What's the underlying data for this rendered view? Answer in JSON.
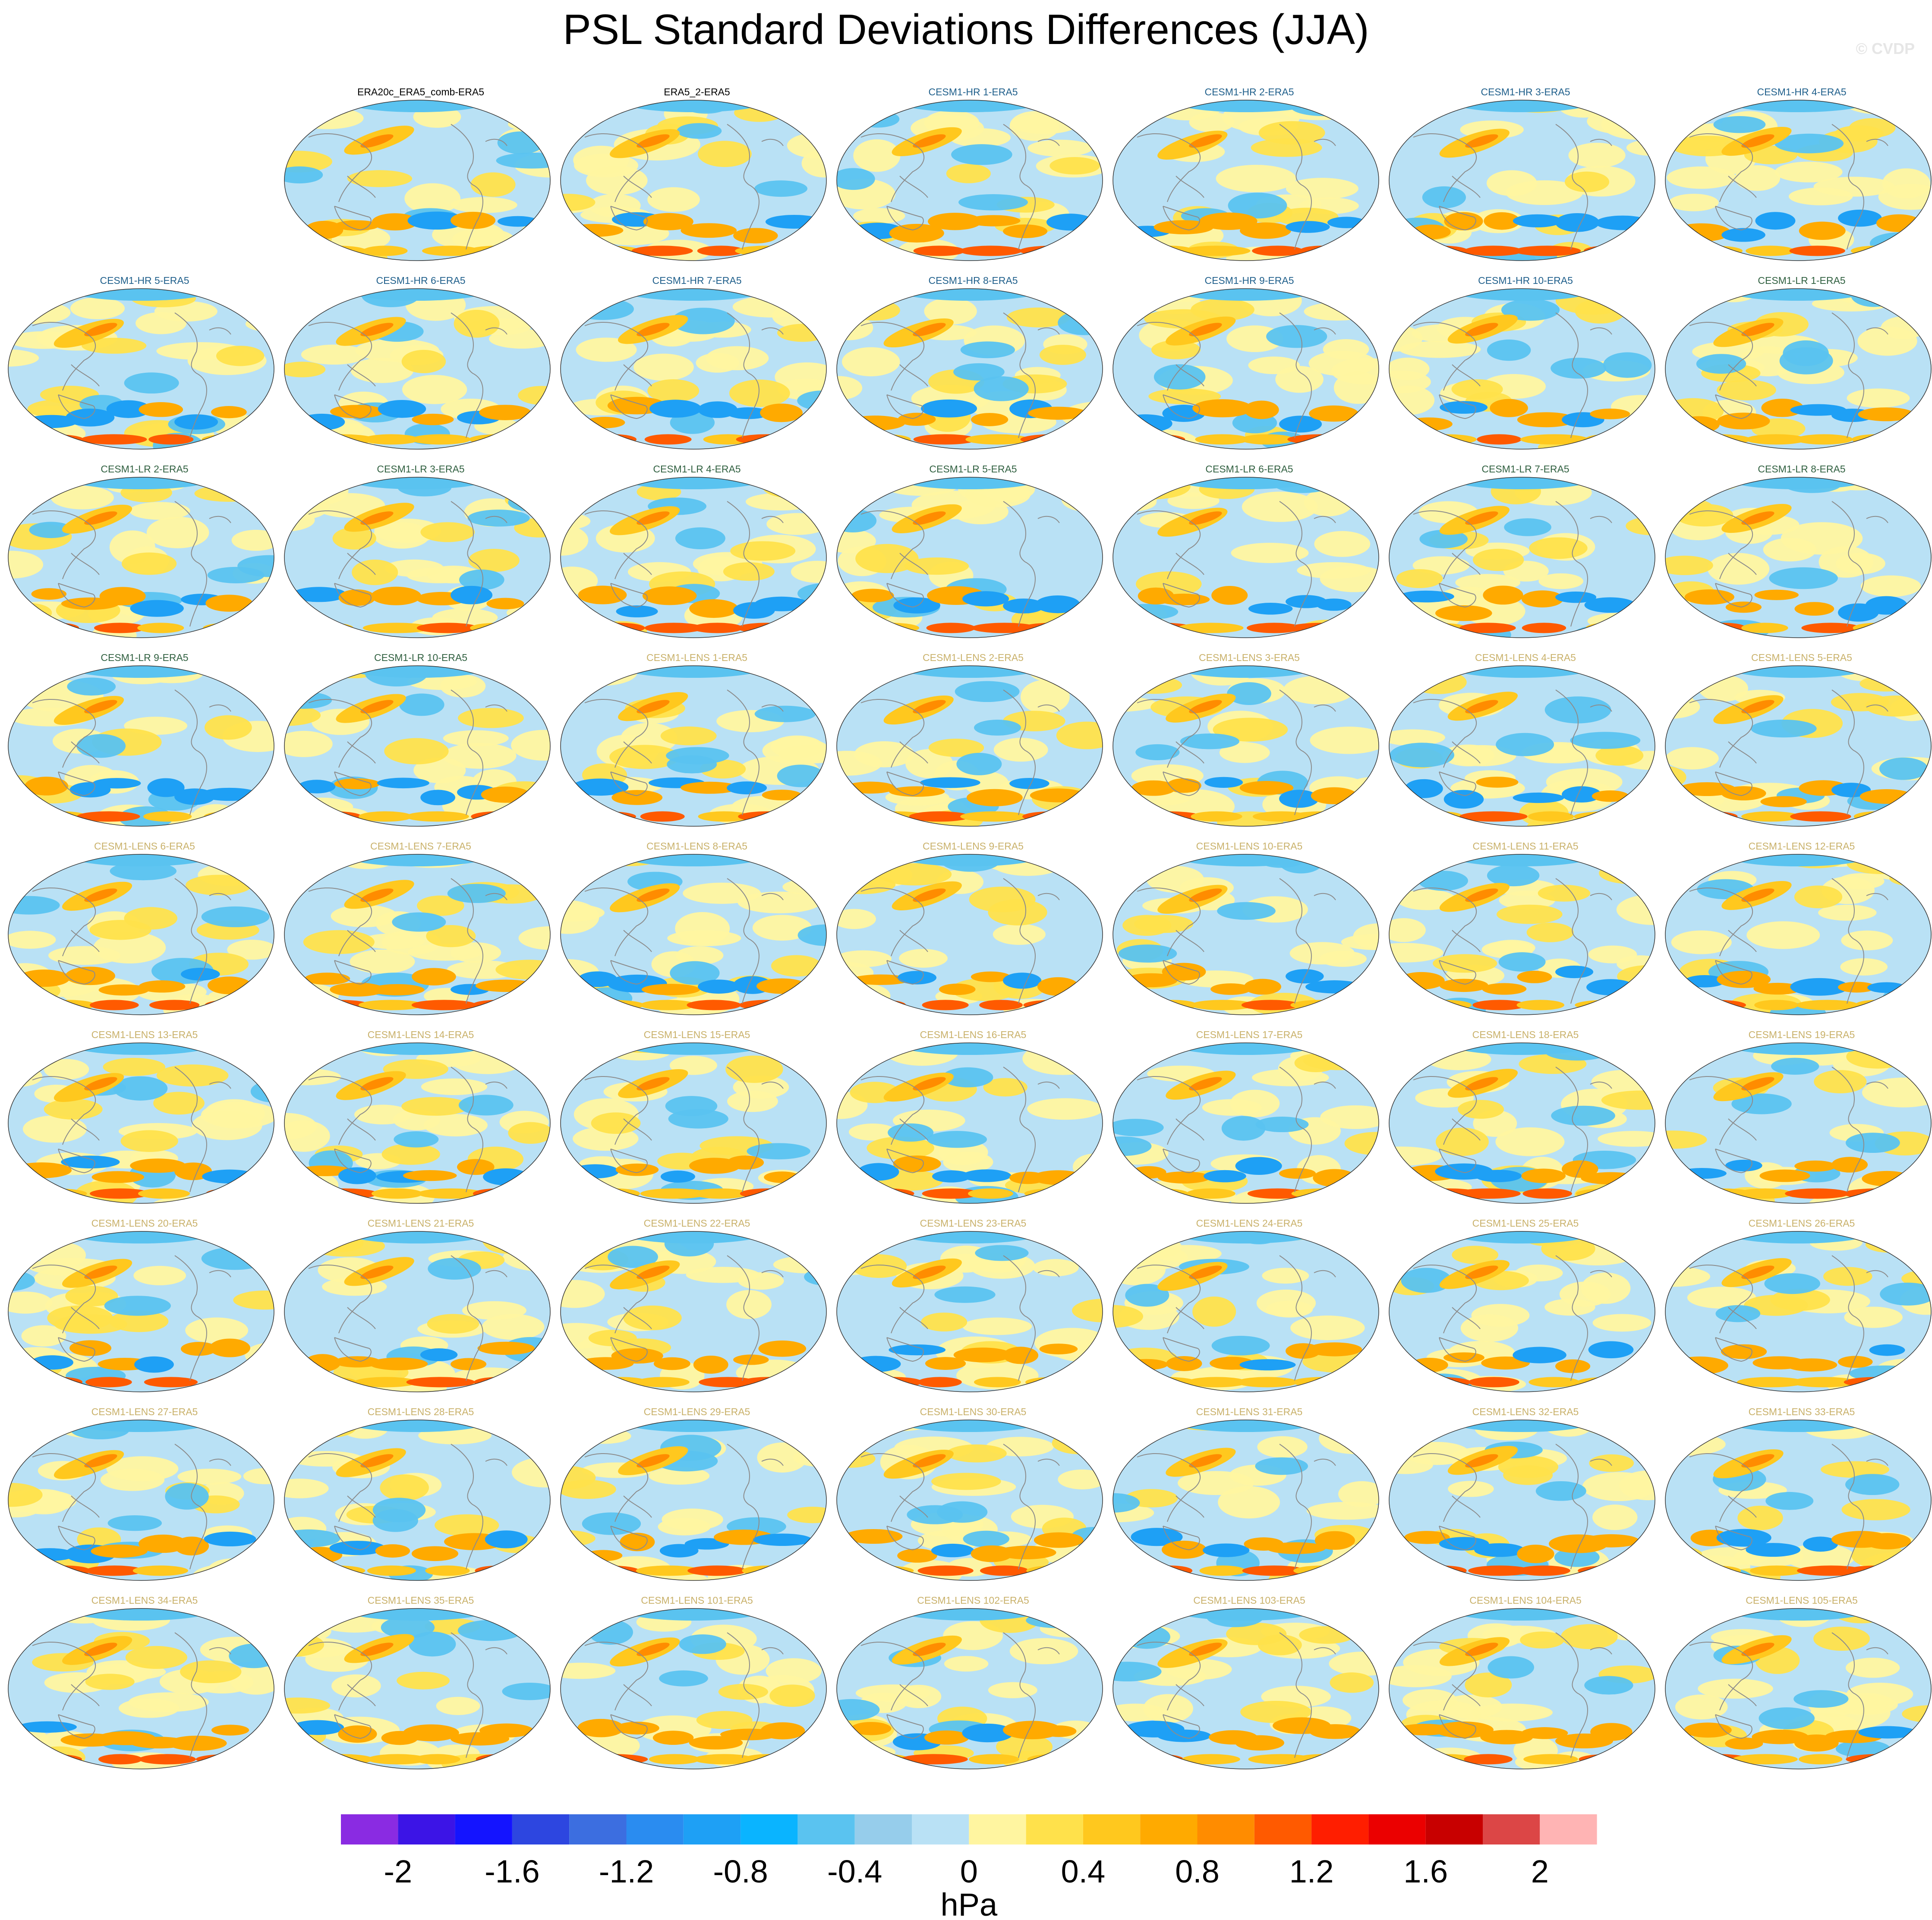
{
  "title": "PSL Standard Deviations Differences (JJA)",
  "watermark": "© CVDP",
  "colors": {
    "obs_title": "#000000",
    "hr_title": "#1f5f8b",
    "lr_title": "#2f5f3f",
    "lens_title": "#c9b16a"
  },
  "panels": [
    {
      "title": "ERA20c_ERA5_comb-ERA5",
      "group": "obs"
    },
    {
      "title": "ERA5_2-ERA5",
      "group": "obs"
    },
    {
      "title": "CESM1-HR 1-ERA5",
      "group": "hr"
    },
    {
      "title": "CESM1-HR 2-ERA5",
      "group": "hr"
    },
    {
      "title": "CESM1-HR 3-ERA5",
      "group": "hr"
    },
    {
      "title": "CESM1-HR 4-ERA5",
      "group": "hr"
    },
    {
      "title": "CESM1-HR 5-ERA5",
      "group": "hr"
    },
    {
      "title": "CESM1-HR 6-ERA5",
      "group": "hr"
    },
    {
      "title": "CESM1-HR 7-ERA5",
      "group": "hr"
    },
    {
      "title": "CESM1-HR 8-ERA5",
      "group": "hr"
    },
    {
      "title": "CESM1-HR 9-ERA5",
      "group": "hr"
    },
    {
      "title": "CESM1-HR 10-ERA5",
      "group": "hr"
    },
    {
      "title": "CESM1-LR 1-ERA5",
      "group": "lr"
    },
    {
      "title": "CESM1-LR 2-ERA5",
      "group": "lr"
    },
    {
      "title": "CESM1-LR 3-ERA5",
      "group": "lr"
    },
    {
      "title": "CESM1-LR 4-ERA5",
      "group": "lr"
    },
    {
      "title": "CESM1-LR 5-ERA5",
      "group": "lr"
    },
    {
      "title": "CESM1-LR 6-ERA5",
      "group": "lr"
    },
    {
      "title": "CESM1-LR 7-ERA5",
      "group": "lr"
    },
    {
      "title": "CESM1-LR 8-ERA5",
      "group": "lr"
    },
    {
      "title": "CESM1-LR 9-ERA5",
      "group": "lr"
    },
    {
      "title": "CESM1-LR 10-ERA5",
      "group": "lr"
    },
    {
      "title": "CESM1-LENS 1-ERA5",
      "group": "lens"
    },
    {
      "title": "CESM1-LENS 2-ERA5",
      "group": "lens"
    },
    {
      "title": "CESM1-LENS 3-ERA5",
      "group": "lens"
    },
    {
      "title": "CESM1-LENS 4-ERA5",
      "group": "lens"
    },
    {
      "title": "CESM1-LENS 5-ERA5",
      "group": "lens"
    },
    {
      "title": "CESM1-LENS 6-ERA5",
      "group": "lens"
    },
    {
      "title": "CESM1-LENS 7-ERA5",
      "group": "lens"
    },
    {
      "title": "CESM1-LENS 8-ERA5",
      "group": "lens"
    },
    {
      "title": "CESM1-LENS 9-ERA5",
      "group": "lens"
    },
    {
      "title": "CESM1-LENS 10-ERA5",
      "group": "lens"
    },
    {
      "title": "CESM1-LENS 11-ERA5",
      "group": "lens"
    },
    {
      "title": "CESM1-LENS 12-ERA5",
      "group": "lens"
    },
    {
      "title": "CESM1-LENS 13-ERA5",
      "group": "lens"
    },
    {
      "title": "CESM1-LENS 14-ERA5",
      "group": "lens"
    },
    {
      "title": "CESM1-LENS 15-ERA5",
      "group": "lens"
    },
    {
      "title": "CESM1-LENS 16-ERA5",
      "group": "lens"
    },
    {
      "title": "CESM1-LENS 17-ERA5",
      "group": "lens"
    },
    {
      "title": "CESM1-LENS 18-ERA5",
      "group": "lens"
    },
    {
      "title": "CESM1-LENS 19-ERA5",
      "group": "lens"
    },
    {
      "title": "CESM1-LENS 20-ERA5",
      "group": "lens"
    },
    {
      "title": "CESM1-LENS 21-ERA5",
      "group": "lens"
    },
    {
      "title": "CESM1-LENS 22-ERA5",
      "group": "lens"
    },
    {
      "title": "CESM1-LENS 23-ERA5",
      "group": "lens"
    },
    {
      "title": "CESM1-LENS 24-ERA5",
      "group": "lens"
    },
    {
      "title": "CESM1-LENS 25-ERA5",
      "group": "lens"
    },
    {
      "title": "CESM1-LENS 26-ERA5",
      "group": "lens"
    },
    {
      "title": "CESM1-LENS 27-ERA5",
      "group": "lens"
    },
    {
      "title": "CESM1-LENS 28-ERA5",
      "group": "lens"
    },
    {
      "title": "CESM1-LENS 29-ERA5",
      "group": "lens"
    },
    {
      "title": "CESM1-LENS 30-ERA5",
      "group": "lens"
    },
    {
      "title": "CESM1-LENS 31-ERA5",
      "group": "lens"
    },
    {
      "title": "CESM1-LENS 32-ERA5",
      "group": "lens"
    },
    {
      "title": "CESM1-LENS 33-ERA5",
      "group": "lens"
    },
    {
      "title": "CESM1-LENS 34-ERA5",
      "group": "lens"
    },
    {
      "title": "CESM1-LENS 35-ERA5",
      "group": "lens"
    },
    {
      "title": "CESM1-LENS 101-ERA5",
      "group": "lens"
    },
    {
      "title": "CESM1-LENS 102-ERA5",
      "group": "lens"
    },
    {
      "title": "CESM1-LENS 103-ERA5",
      "group": "lens"
    },
    {
      "title": "CESM1-LENS 104-ERA5",
      "group": "lens"
    },
    {
      "title": "CESM1-LENS 105-ERA5",
      "group": "lens"
    }
  ],
  "colorbar": {
    "label": "hPa",
    "tick_labels": [
      "-2",
      "-1.6",
      "-1.2",
      "-0.8",
      "-0.4",
      "0",
      "0.4",
      "0.8",
      "1.2",
      "1.6",
      "2"
    ],
    "colors": [
      "#8a2be2",
      "#3c14e6",
      "#1414ff",
      "#2d46e0",
      "#3c6ee0",
      "#2a8cf0",
      "#1ea0f5",
      "#0ab4ff",
      "#5ac3f0",
      "#96cdeb",
      "#b9e1f5",
      "#fff5a0",
      "#ffe14b",
      "#ffc81e",
      "#ffaa00",
      "#ff8c00",
      "#ff5a00",
      "#ff1e00",
      "#eb0000",
      "#c80000",
      "#dc4646",
      "#ffb4b4"
    ]
  }
}
